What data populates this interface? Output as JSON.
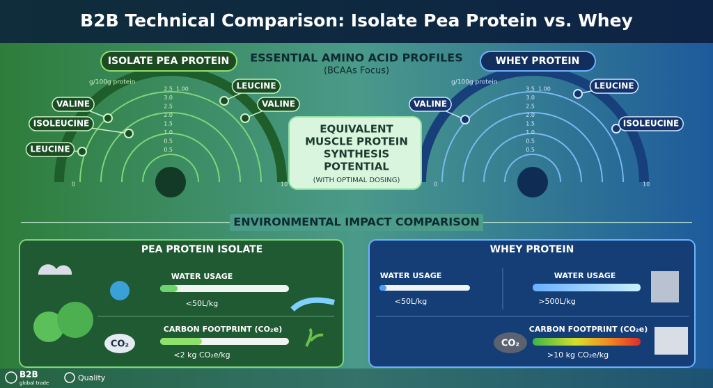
{
  "header": {
    "title": "B2B Technical Comparison: Isolate Pea Protein vs. Whey"
  },
  "amino": {
    "title": "ESSENTIAL AMINO ACID PROFILES",
    "subtitle": "(BCAAs Focus)",
    "pea": {
      "label": "ISOLATE PEA PROTEIN",
      "unit": "g/100g protein",
      "scale": [
        "2.5",
        "3.0",
        "2.5",
        "2.0",
        "1.5",
        "1.0",
        "0.5",
        "0.5"
      ],
      "scale_top": "1.00",
      "axis_min": "0",
      "axis_max": "10",
      "markers": [
        "VALINE",
        "ISOLEUCINE",
        "LEUCINE",
        "LEUCINE",
        "VALINE"
      ]
    },
    "whey": {
      "label": "WHEY PROTEIN",
      "unit": "g/100g protein",
      "scale": [
        "3.5",
        "3.0",
        "2.5",
        "2.0",
        "1.5",
        "1.0",
        "0.5",
        "0.5"
      ],
      "scale_top": "1.00",
      "axis_min": "0",
      "axis_max": "10",
      "markers": [
        "VALINE",
        "LEUCINE",
        "ISOLEUCINE"
      ]
    },
    "callout": {
      "lines": [
        "EQUIVALENT",
        "MUSCLE PROTEIN",
        "SYNTHESIS",
        "POTENTIAL"
      ],
      "note": "(WITH OPTIMAL DOSING)"
    }
  },
  "environment": {
    "title": "ENVIRONMENTAL IMPACT COMPARISON",
    "pea": {
      "label": "PEA PROTEIN ISOLATE",
      "co2_icon": "CO₂",
      "water": {
        "label": "WATER USAGE",
        "value": "<50L/kg"
      },
      "carbon": {
        "label": "CARBON FOOTPRINT (CO₂e)",
        "value": "<2 kg CO₂e/kg"
      }
    },
    "whey": {
      "label": "WHEY PROTEIN",
      "co2_icon": "CO₂",
      "water_small": {
        "label": "WATER USAGE",
        "value": "<50L/kg"
      },
      "water": {
        "label": "WATER USAGE",
        "value": ">500L/kg"
      },
      "carbon": {
        "label": "CARBON FOOTPRINT (CO₂e)",
        "value": ">10 kg CO₂e/kg"
      }
    }
  },
  "footer": {
    "brand": "B2B",
    "brand_sub": "global trade",
    "badge": "Quality"
  }
}
